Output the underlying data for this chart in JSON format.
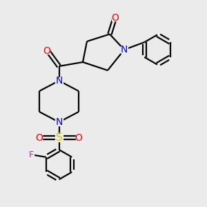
{
  "bg_color": "#ebebeb",
  "bond_color": "#000000",
  "N_color": "#0000ff",
  "O_color": "#ff0000",
  "S_color": "#cccc00",
  "F_color": "#ff00cc",
  "line_width": 1.6,
  "figsize": [
    3.0,
    3.0
  ],
  "dpi": 100,
  "xlim": [
    0,
    10
  ],
  "ylim": [
    0,
    10
  ]
}
